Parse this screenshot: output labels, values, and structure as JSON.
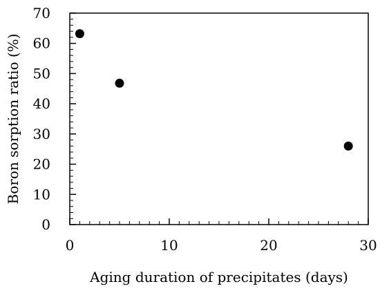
{
  "chart_data": {
    "type": "scatter",
    "title": "",
    "xlabel": "Aging duration of precipitates (days)",
    "ylabel": "Boron sorption ratio (%)",
    "xlim": [
      0,
      30
    ],
    "ylim": [
      0,
      70
    ],
    "x_major_ticks": [
      0,
      10,
      20,
      30
    ],
    "x_minor_step": 1,
    "y_major_ticks": [
      0,
      10,
      20,
      30,
      40,
      50,
      60,
      70
    ],
    "y_minor_step": 2,
    "grid": false,
    "legend": "none",
    "marker_color": "#000000",
    "series": [
      {
        "points": [
          {
            "x": 1,
            "y": 63.2
          },
          {
            "x": 5,
            "y": 46.8
          },
          {
            "x": 28,
            "y": 26.0
          }
        ]
      }
    ]
  }
}
